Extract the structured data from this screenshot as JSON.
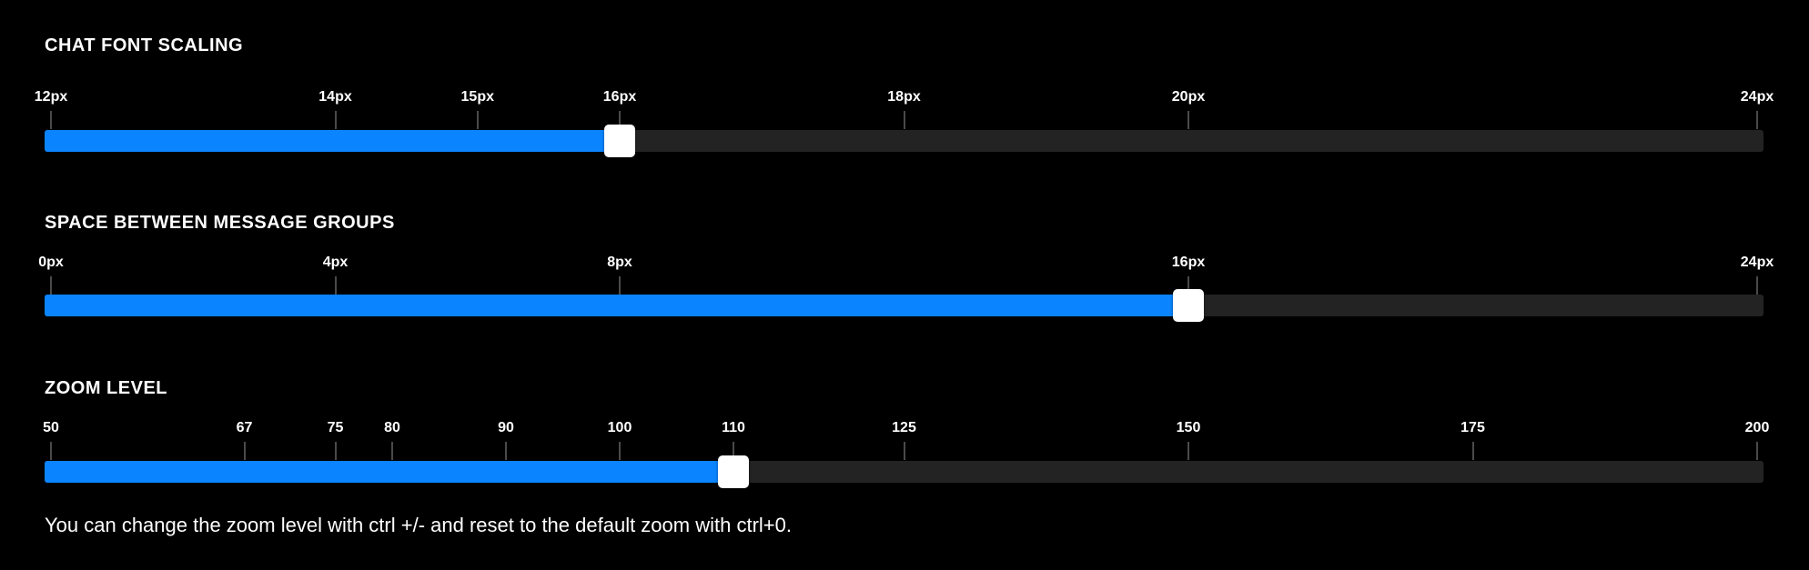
{
  "colors": {
    "fill": "#0a84ff",
    "track": "#232323",
    "thumb": "#ffffff",
    "background": "#000000"
  },
  "sliders": [
    {
      "id": "chat-font-scaling",
      "title": "CHAT FONT SCALING",
      "min": 12,
      "max": 24,
      "value": 16,
      "ticks": [
        {
          "value": 12,
          "label": "12px"
        },
        {
          "value": 14,
          "label": "14px"
        },
        {
          "value": 15,
          "label": "15px"
        },
        {
          "value": 16,
          "label": "16px"
        },
        {
          "value": 18,
          "label": "18px"
        },
        {
          "value": 20,
          "label": "20px"
        },
        {
          "value": 24,
          "label": "24px"
        }
      ]
    },
    {
      "id": "space-between-message-groups",
      "title": "SPACE BETWEEN MESSAGE GROUPS",
      "min": 0,
      "max": 24,
      "value": 16,
      "ticks": [
        {
          "value": 0,
          "label": "0px"
        },
        {
          "value": 4,
          "label": "4px"
        },
        {
          "value": 8,
          "label": "8px"
        },
        {
          "value": 16,
          "label": "16px"
        },
        {
          "value": 24,
          "label": "24px"
        }
      ]
    },
    {
      "id": "zoom-level",
      "title": "ZOOM LEVEL",
      "min": 50,
      "max": 200,
      "value": 110,
      "ticks": [
        {
          "value": 50,
          "label": "50"
        },
        {
          "value": 67,
          "label": "67"
        },
        {
          "value": 75,
          "label": "75"
        },
        {
          "value": 80,
          "label": "80"
        },
        {
          "value": 90,
          "label": "90"
        },
        {
          "value": 100,
          "label": "100"
        },
        {
          "value": 110,
          "label": "110"
        },
        {
          "value": 125,
          "label": "125"
        },
        {
          "value": 150,
          "label": "150"
        },
        {
          "value": 175,
          "label": "175"
        },
        {
          "value": 200,
          "label": "200"
        }
      ]
    }
  ],
  "zoom_note": "You can change the zoom level with ctrl +/- and reset to the default zoom with ctrl+0."
}
